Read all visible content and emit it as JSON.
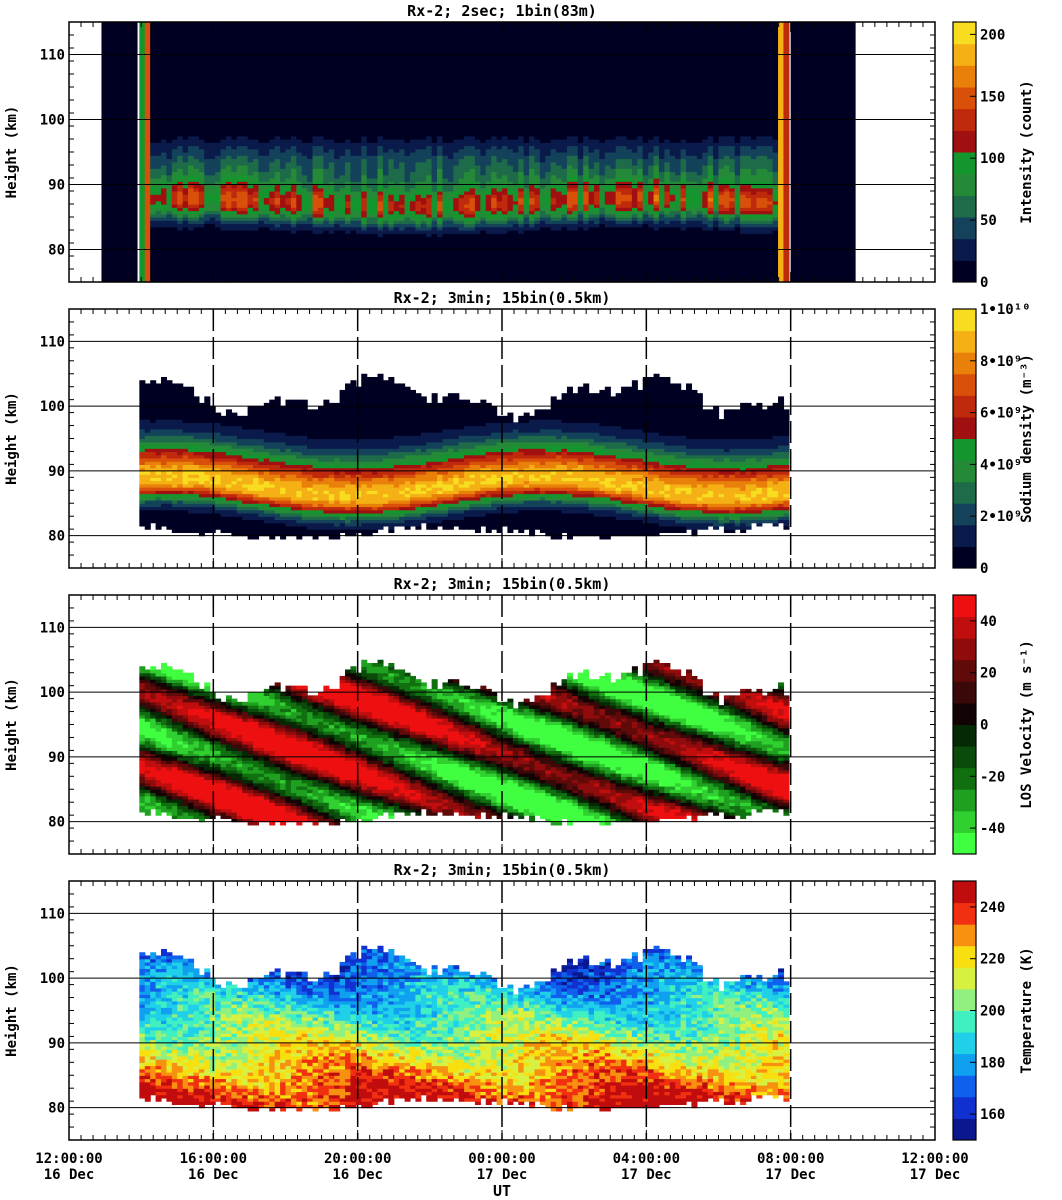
{
  "xaxis": {
    "label": "UT",
    "range_hours": [
      0,
      24
    ],
    "ticks": [
      {
        "hours": 0,
        "time": "12:00:00",
        "date": "16 Dec"
      },
      {
        "hours": 4,
        "time": "16:00:00",
        "date": "16 Dec"
      },
      {
        "hours": 8,
        "time": "20:00:00",
        "date": "16 Dec"
      },
      {
        "hours": 12,
        "time": "00:00:00",
        "date": "17 Dec"
      },
      {
        "hours": 16,
        "time": "04:00:00",
        "date": "17 Dec"
      },
      {
        "hours": 20,
        "time": "08:00:00",
        "date": "17 Dec"
      },
      {
        "hours": 24,
        "time": "12:00:00",
        "date": "17 Dec"
      }
    ]
  },
  "chart_data": [
    {
      "type": "heatmap",
      "title": "Rx-2;  2sec; 1bin(83m)",
      "ylabel": "Height (km)",
      "ylim": [
        75,
        115
      ],
      "yticks": [
        80,
        90,
        100,
        110
      ],
      "colorbar": {
        "label": "Intensity (count)",
        "range": [
          0,
          210
        ],
        "ticks": [
          {
            "v": 0,
            "t": "0"
          },
          {
            "v": 50,
            "t": "50"
          },
          {
            "v": 100,
            "t": "100"
          },
          {
            "v": 150,
            "t": "150"
          },
          {
            "v": 200,
            "t": "200"
          }
        ],
        "colors": [
          "#000022",
          "#0a1a4a",
          "#13425a",
          "#1e6b4a",
          "#258a38",
          "#14962e",
          "#a01010",
          "#c02a0c",
          "#d8500a",
          "#e8800a",
          "#f4b014",
          "#f8dc20"
        ]
      },
      "data_window_hours": [
        1.9,
        20.0
      ],
      "layer": {
        "base_km": 80.0,
        "peak_km": 87.0,
        "top_km": 93.0
      }
    },
    {
      "type": "heatmap",
      "title": "Rx-2; 3min; 15bin(0.5km)",
      "ylabel": "Height (km)",
      "ylim": [
        75,
        115
      ],
      "yticks": [
        80,
        90,
        100,
        110
      ],
      "colorbar": {
        "label": "Sodium density (m⁻³)",
        "range": [
          0,
          10000000000.0
        ],
        "ticks": [
          {
            "v": 0,
            "t": "0"
          },
          {
            "v": 2000000000.0,
            "t": "2•10⁹"
          },
          {
            "v": 4000000000.0,
            "t": "4•10⁹"
          },
          {
            "v": 6000000000.0,
            "t": "6•10⁹"
          },
          {
            "v": 8000000000.0,
            "t": "8•10⁹"
          },
          {
            "v": 10000000000.0,
            "t": "1•10¹⁰"
          }
        ],
        "colors": [
          "#000022",
          "#0a1a4a",
          "#13425a",
          "#1e6b4a",
          "#258a38",
          "#14962e",
          "#a01010",
          "#c02a0c",
          "#d8500a",
          "#e8800a",
          "#f4b014",
          "#f8dc20"
        ]
      },
      "data_window_hours": [
        1.9,
        20.0
      ],
      "peak_density": 9500000000.0
    },
    {
      "type": "heatmap",
      "title": "Rx-2; 3min; 15bin(0.5km)",
      "ylabel": "Height (km)",
      "ylim": [
        75,
        115
      ],
      "yticks": [
        80,
        90,
        100,
        110
      ],
      "colorbar": {
        "label": "LOS Velocity (m s⁻¹)",
        "range": [
          -50,
          50
        ],
        "ticks": [
          {
            "v": -40,
            "t": "-40"
          },
          {
            "v": -20,
            "t": "-20"
          },
          {
            "v": 0,
            "t": "0"
          },
          {
            "v": 20,
            "t": "20"
          },
          {
            "v": 40,
            "t": "40"
          }
        ],
        "colors": [
          "#40ff40",
          "#30d030",
          "#20a020",
          "#107010",
          "#0a4a0a",
          "#052805",
          "#120404",
          "#3a0808",
          "#600a0a",
          "#900c0c",
          "#c00e0e",
          "#ee1010"
        ]
      },
      "data_window_hours": [
        1.9,
        20.0
      ],
      "amplitude_ms": 45
    },
    {
      "type": "heatmap",
      "title": "Rx-2; 3min; 15bin(0.5km)",
      "ylabel": "Height (km)",
      "ylim": [
        75,
        115
      ],
      "yticks": [
        80,
        90,
        100,
        110
      ],
      "colorbar": {
        "label": "Temperature (K)",
        "range": [
          150,
          250
        ],
        "ticks": [
          {
            "v": 160,
            "t": "160"
          },
          {
            "v": 180,
            "t": "180"
          },
          {
            "v": 200,
            "t": "200"
          },
          {
            "v": 220,
            "t": "220"
          },
          {
            "v": 240,
            "t": "240"
          }
        ],
        "colors": [
          "#0a1890",
          "#1030d0",
          "#1060ee",
          "#10a0f0",
          "#20d0e8",
          "#40f0c0",
          "#90f080",
          "#d8f040",
          "#f8e010",
          "#f89010",
          "#f03010",
          "#c00c0c"
        ]
      },
      "data_window_hours": [
        1.9,
        20.0
      ],
      "temperature_range_K": [
        160,
        240
      ]
    }
  ]
}
